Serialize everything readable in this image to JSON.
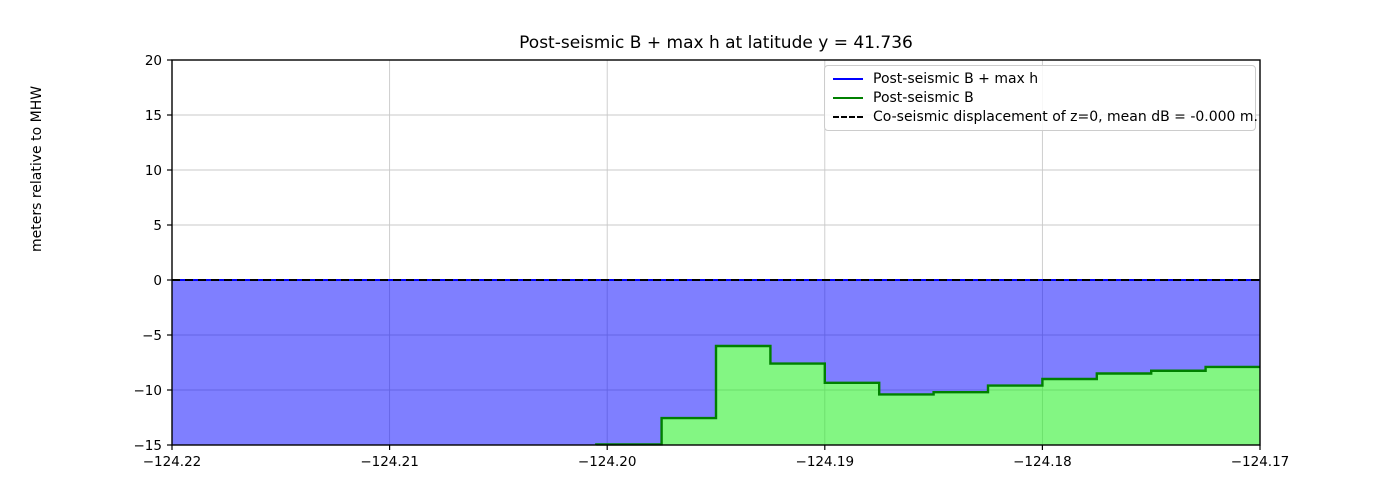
{
  "chart_data": {
    "type": "area",
    "title": "Post-seismic B + max h at latitude y = 41.736",
    "xlabel": "",
    "ylabel": "meters relative to MHW",
    "xlim": [
      -124.22,
      -124.17
    ],
    "ylim": [
      -15,
      20
    ],
    "grid": true,
    "x_ticks": [
      -124.22,
      -124.21,
      -124.2,
      -124.19,
      -124.18,
      -124.17
    ],
    "x_tick_labels": [
      "−124.22",
      "−124.21",
      "−124.20",
      "−124.19",
      "−124.18",
      "−124.17"
    ],
    "y_ticks": [
      20,
      15,
      10,
      5,
      0,
      -5,
      -10,
      -15
    ],
    "y_tick_labels": [
      "20",
      "15",
      "10",
      "5",
      "0",
      "−5",
      "−10",
      "−15"
    ],
    "series": [
      {
        "name": "Post-seismic B + max h",
        "type": "hline-fill",
        "value": 0,
        "line_color": "#0000ff",
        "fill_color": "rgba(0,0,255,0.5)"
      },
      {
        "name": "Post-seismic B",
        "type": "step-fill",
        "line_color": "#008000",
        "fill_color": "rgba(30,238,30,0.55)",
        "segments": [
          {
            "x0": -124.2005,
            "x1": -124.1975,
            "y": -14.95
          },
          {
            "x0": -124.1975,
            "x1": -124.195,
            "y": -12.55
          },
          {
            "x0": -124.195,
            "x1": -124.1925,
            "y": -6.0
          },
          {
            "x0": -124.1925,
            "x1": -124.19,
            "y": -7.6
          },
          {
            "x0": -124.19,
            "x1": -124.1875,
            "y": -9.35
          },
          {
            "x0": -124.1875,
            "x1": -124.185,
            "y": -10.4
          },
          {
            "x0": -124.185,
            "x1": -124.1825,
            "y": -10.2
          },
          {
            "x0": -124.1825,
            "x1": -124.18,
            "y": -9.6
          },
          {
            "x0": -124.18,
            "x1": -124.1775,
            "y": -9.0
          },
          {
            "x0": -124.1775,
            "x1": -124.175,
            "y": -8.5
          },
          {
            "x0": -124.175,
            "x1": -124.1725,
            "y": -8.25
          },
          {
            "x0": -124.1725,
            "x1": -124.17,
            "y": -7.9
          }
        ]
      },
      {
        "name": "Co-seismic displacement of z=0, mean dB = -0.000 m.",
        "type": "dashed-hline",
        "value": 0,
        "mean_dB": "-0.000",
        "line_color": "#000000"
      }
    ],
    "legend": {
      "position": "upper right",
      "items": [
        {
          "label": "Post-seismic B + max h",
          "color": "#0000ff",
          "style": "solid"
        },
        {
          "label": "Post-seismic B",
          "color": "#008000",
          "style": "solid"
        },
        {
          "label": "Co-seismic displacement of z=0, mean dB = -0.000 m.",
          "color": "#000000",
          "style": "dashed"
        }
      ]
    },
    "style": {
      "grid_color": "#c9c9c9",
      "spine_color": "#000000",
      "background": "#ffffff"
    }
  }
}
